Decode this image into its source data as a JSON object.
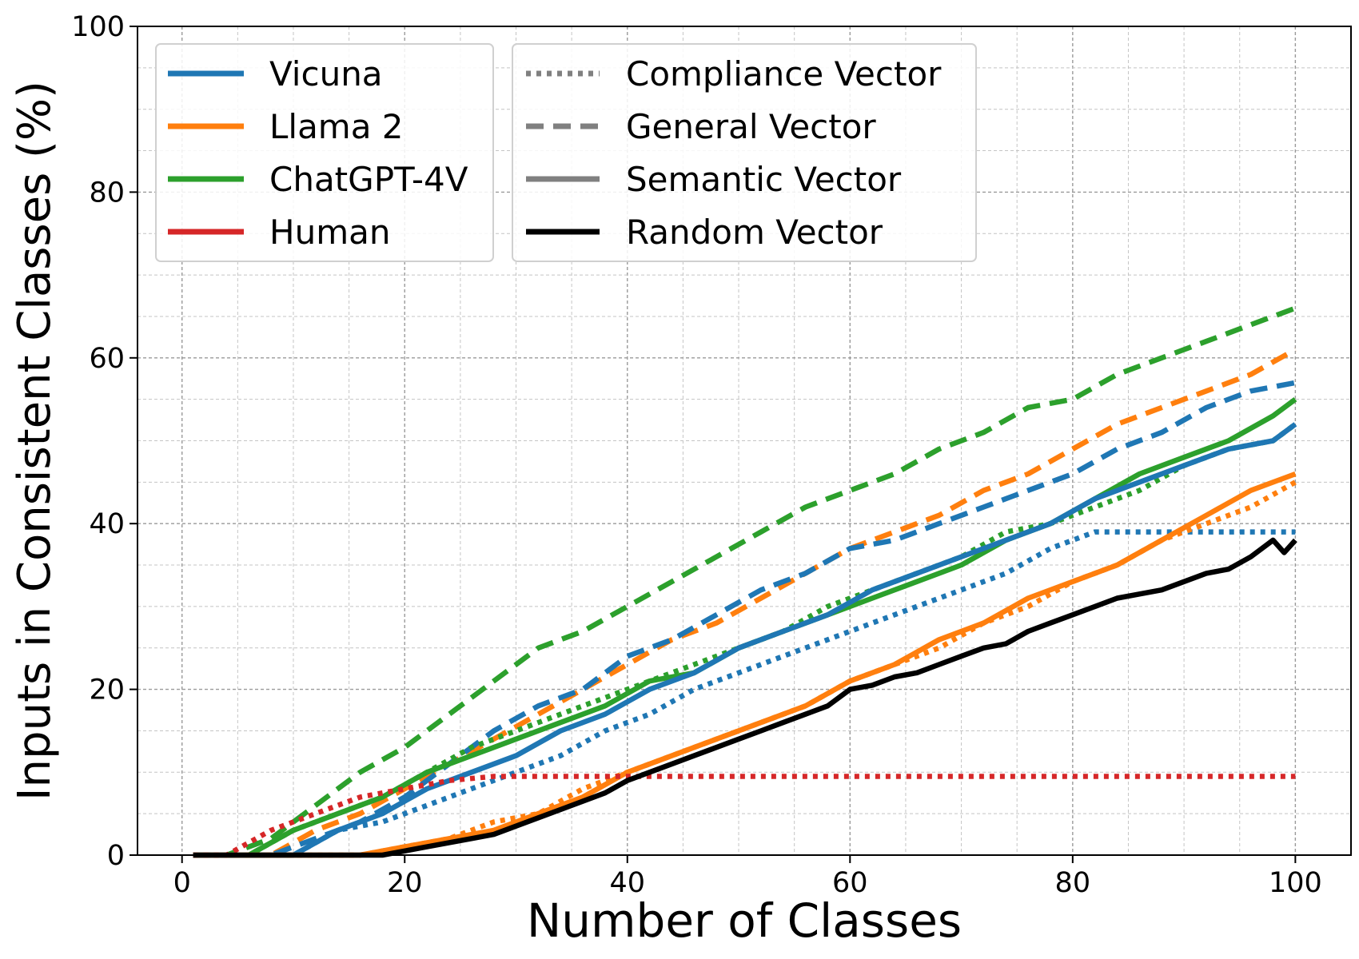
{
  "chart_data": {
    "type": "line",
    "xlabel": "Number of Classes",
    "ylabel": "Inputs in Consistent Classes (%)",
    "xlim": [
      -4,
      105
    ],
    "ylim": [
      0,
      100
    ],
    "xticks": [
      0,
      20,
      40,
      60,
      80,
      100
    ],
    "yticks": [
      0,
      20,
      40,
      60,
      80,
      100
    ],
    "grid": true,
    "legend_placement": "top-left",
    "model_legend": [
      {
        "name": "Vicuna",
        "color": "#1f77b4"
      },
      {
        "name": "Llama 2",
        "color": "#ff7f0e"
      },
      {
        "name": "ChatGPT-4V",
        "color": "#2ca02c"
      },
      {
        "name": "Human",
        "color": "#d62728"
      }
    ],
    "style_legend": [
      {
        "name": "Compliance Vector",
        "style": "dotted",
        "color": "#808080"
      },
      {
        "name": "General Vector",
        "style": "dashed",
        "color": "#808080"
      },
      {
        "name": "Semantic Vector",
        "style": "solid",
        "color": "#808080"
      },
      {
        "name": "Random Vector",
        "style": "solid",
        "color": "#000000"
      }
    ],
    "series": [
      {
        "model": "ChatGPT-4V",
        "vector": "General Vector",
        "color": "#2ca02c",
        "style": "dashed",
        "x": [
          1,
          4,
          8,
          12,
          16,
          20,
          24,
          28,
          32,
          36,
          40,
          44,
          48,
          52,
          56,
          60,
          64,
          68,
          72,
          76,
          80,
          84,
          88,
          92,
          96,
          100
        ],
        "y": [
          0,
          0,
          2,
          6,
          10,
          13,
          17,
          21,
          25,
          27,
          30,
          33,
          36,
          39,
          42,
          44,
          46,
          49,
          51,
          54,
          55,
          58,
          60,
          62,
          64,
          66
        ]
      },
      {
        "model": "Llama 2",
        "vector": "General Vector",
        "color": "#ff7f0e",
        "style": "dashed",
        "x": [
          1,
          8,
          12,
          16,
          20,
          24,
          28,
          32,
          36,
          40,
          44,
          48,
          52,
          56,
          60,
          64,
          68,
          72,
          76,
          80,
          84,
          88,
          92,
          96,
          100
        ],
        "y": [
          0,
          0,
          3,
          5,
          8,
          11,
          14,
          17,
          20,
          23,
          26,
          28,
          31,
          34,
          37,
          39,
          41,
          44,
          46,
          49,
          52,
          54,
          56,
          58,
          61
        ]
      },
      {
        "model": "Vicuna",
        "vector": "General Vector",
        "color": "#1f77b4",
        "style": "dashed",
        "x": [
          1,
          8,
          12,
          16,
          20,
          24,
          28,
          32,
          36,
          40,
          44,
          48,
          52,
          56,
          60,
          64,
          68,
          72,
          76,
          80,
          84,
          88,
          92,
          96,
          100
        ],
        "y": [
          0,
          0,
          2,
          4,
          7,
          11,
          15,
          18,
          20,
          24,
          26,
          29,
          32,
          34,
          37,
          38,
          40,
          42,
          44,
          46,
          49,
          51,
          54,
          56,
          57
        ]
      },
      {
        "model": "ChatGPT-4V",
        "vector": "Compliance Vector",
        "color": "#2ca02c",
        "style": "dotted",
        "x": [
          1,
          6,
          10,
          14,
          18,
          22,
          26,
          30,
          34,
          38,
          42,
          46,
          50,
          54,
          58,
          62,
          66,
          70,
          74,
          78,
          82,
          86,
          90,
          94,
          98,
          100
        ],
        "y": [
          0,
          0,
          3,
          5,
          7,
          10,
          13,
          15,
          17,
          19,
          21,
          23,
          25,
          27,
          30,
          32,
          34,
          36,
          39,
          40,
          42,
          44,
          47,
          49,
          50,
          52
        ]
      },
      {
        "model": "ChatGPT-4V",
        "vector": "Semantic Vector",
        "color": "#2ca02c",
        "style": "solid",
        "x": [
          1,
          6,
          10,
          14,
          18,
          22,
          26,
          30,
          34,
          38,
          42,
          46,
          50,
          54,
          58,
          62,
          66,
          70,
          74,
          78,
          82,
          86,
          90,
          94,
          98,
          100
        ],
        "y": [
          0,
          0,
          3,
          5,
          7,
          10,
          12,
          14,
          16,
          18,
          21,
          22,
          25,
          27,
          29,
          31,
          33,
          35,
          38,
          40,
          43,
          46,
          48,
          50,
          53,
          55
        ]
      },
      {
        "model": "Vicuna",
        "vector": "Semantic Vector",
        "color": "#1f77b4",
        "style": "solid",
        "x": [
          1,
          10,
          14,
          18,
          22,
          26,
          30,
          34,
          38,
          42,
          46,
          50,
          54,
          58,
          62,
          66,
          70,
          74,
          78,
          82,
          86,
          90,
          94,
          98,
          100
        ],
        "y": [
          0,
          0,
          3,
          5,
          8,
          10,
          12,
          15,
          17,
          20,
          22,
          25,
          27,
          29,
          32,
          34,
          36,
          38,
          40,
          43,
          45,
          47,
          49,
          50,
          52
        ]
      },
      {
        "model": "Vicuna",
        "vector": "Compliance Vector",
        "color": "#1f77b4",
        "style": "dotted",
        "x": [
          1,
          10,
          14,
          18,
          22,
          26,
          30,
          34,
          38,
          42,
          46,
          50,
          54,
          58,
          62,
          66,
          70,
          74,
          78,
          82,
          86,
          90,
          94,
          100
        ],
        "y": [
          0,
          0,
          3,
          4,
          6,
          8,
          10,
          12,
          15,
          17,
          20,
          22,
          24,
          26,
          28,
          30,
          32,
          34,
          37,
          39,
          39,
          39,
          39,
          39
        ]
      },
      {
        "model": "Llama 2",
        "vector": "Semantic Vector",
        "color": "#ff7f0e",
        "style": "solid",
        "x": [
          1,
          16,
          20,
          24,
          28,
          32,
          36,
          40,
          44,
          48,
          52,
          56,
          60,
          64,
          68,
          72,
          76,
          80,
          84,
          88,
          92,
          96,
          100
        ],
        "y": [
          0,
          0,
          1,
          2,
          3,
          5,
          7,
          10,
          12,
          14,
          16,
          18,
          21,
          23,
          26,
          28,
          31,
          33,
          35,
          38,
          41,
          44,
          46
        ]
      },
      {
        "model": "Llama 2",
        "vector": "Compliance Vector",
        "color": "#ff7f0e",
        "style": "dotted",
        "x": [
          1,
          16,
          20,
          24,
          28,
          32,
          36,
          40,
          44,
          48,
          52,
          56,
          60,
          64,
          68,
          72,
          76,
          80,
          84,
          88,
          92,
          96,
          100
        ],
        "y": [
          0,
          0,
          1,
          2,
          4,
          5,
          8,
          10,
          12,
          14,
          16,
          18,
          21,
          23,
          25,
          28,
          30,
          33,
          35,
          38,
          40,
          42,
          45
        ]
      },
      {
        "model": "Human",
        "vector": "Compliance Vector",
        "color": "#d62728",
        "style": "dotted",
        "x": [
          1,
          4,
          8,
          12,
          16,
          20,
          24,
          28,
          100
        ],
        "y": [
          0,
          0,
          3,
          5,
          7,
          8,
          9,
          9.5,
          9.5
        ]
      },
      {
        "model": "Random",
        "vector": "Random Vector",
        "color": "#000000",
        "style": "solid",
        "x": [
          1,
          18,
          20,
          22,
          24,
          26,
          28,
          30,
          32,
          34,
          36,
          38,
          40,
          42,
          44,
          46,
          48,
          50,
          52,
          54,
          56,
          58,
          60,
          62,
          64,
          66,
          68,
          70,
          72,
          74,
          76,
          78,
          80,
          82,
          84,
          86,
          88,
          90,
          92,
          94,
          96,
          98,
          99,
          100
        ],
        "y": [
          0,
          0,
          0.5,
          1,
          1.5,
          2,
          2.5,
          3.5,
          4.5,
          5.5,
          6.5,
          7.5,
          9,
          10,
          11,
          12,
          13,
          14,
          15,
          16,
          17,
          18,
          20,
          20.5,
          21.5,
          22,
          23,
          24,
          25,
          25.5,
          27,
          28,
          29,
          30,
          31,
          31.5,
          32,
          33,
          34,
          34.5,
          36,
          38,
          36.5,
          38
        ]
      }
    ]
  }
}
